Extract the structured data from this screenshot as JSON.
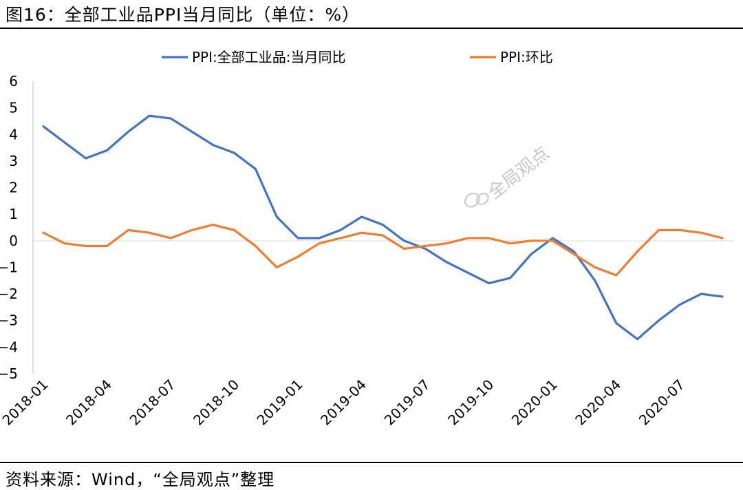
{
  "header": {
    "title": "图16：全部工业品PPI当月同比（单位：%）"
  },
  "footer": {
    "source": "资料来源：Wind，“全局观点”整理"
  },
  "watermark": {
    "text": "全局观点"
  },
  "chart_data": {
    "type": "line",
    "x": [
      "2018-01",
      "2018-02",
      "2018-03",
      "2018-04",
      "2018-05",
      "2018-06",
      "2018-07",
      "2018-08",
      "2018-09",
      "2018-10",
      "2018-11",
      "2018-12",
      "2019-01",
      "2019-02",
      "2019-03",
      "2019-04",
      "2019-05",
      "2019-06",
      "2019-07",
      "2019-08",
      "2019-09",
      "2019-10",
      "2019-11",
      "2019-12",
      "2020-01",
      "2020-02",
      "2020-03",
      "2020-04",
      "2020-05",
      "2020-06",
      "2020-07",
      "2020-08",
      "2020-09"
    ],
    "x_tick_labels": [
      "2018-01",
      "2018-04",
      "2018-07",
      "2018-10",
      "2019-01",
      "2019-04",
      "2019-07",
      "2019-10",
      "2020-01",
      "2020-04",
      "2020-07"
    ],
    "series": [
      {
        "name": "PPI:全部工业品:当月同比",
        "color": "#4472C4",
        "values": [
          4.3,
          3.7,
          3.1,
          3.4,
          4.1,
          4.7,
          4.6,
          4.1,
          3.6,
          3.3,
          2.7,
          0.9,
          0.1,
          0.1,
          0.4,
          0.9,
          0.6,
          0.0,
          -0.3,
          -0.8,
          -1.2,
          -1.6,
          -1.4,
          -0.5,
          0.1,
          -0.4,
          -1.5,
          -3.1,
          -3.7,
          -3.0,
          -2.4,
          -2.0,
          -2.1
        ]
      },
      {
        "name": "PPI:环比",
        "color": "#ED7D31",
        "values": [
          0.3,
          -0.1,
          -0.2,
          -0.2,
          0.4,
          0.3,
          0.1,
          0.4,
          0.6,
          0.4,
          -0.2,
          -1.0,
          -0.6,
          -0.1,
          0.1,
          0.3,
          0.2,
          -0.3,
          -0.2,
          -0.1,
          0.1,
          0.1,
          -0.1,
          0.0,
          0.0,
          -0.5,
          -1.0,
          -1.3,
          -0.4,
          0.4,
          0.4,
          0.3,
          0.1
        ]
      }
    ],
    "yticks": [
      6,
      5,
      4,
      3,
      2,
      1,
      0,
      -1,
      -2,
      -3,
      -4,
      -5
    ],
    "ylim": [
      -5,
      6
    ],
    "legend_position": "top",
    "grid": false
  }
}
